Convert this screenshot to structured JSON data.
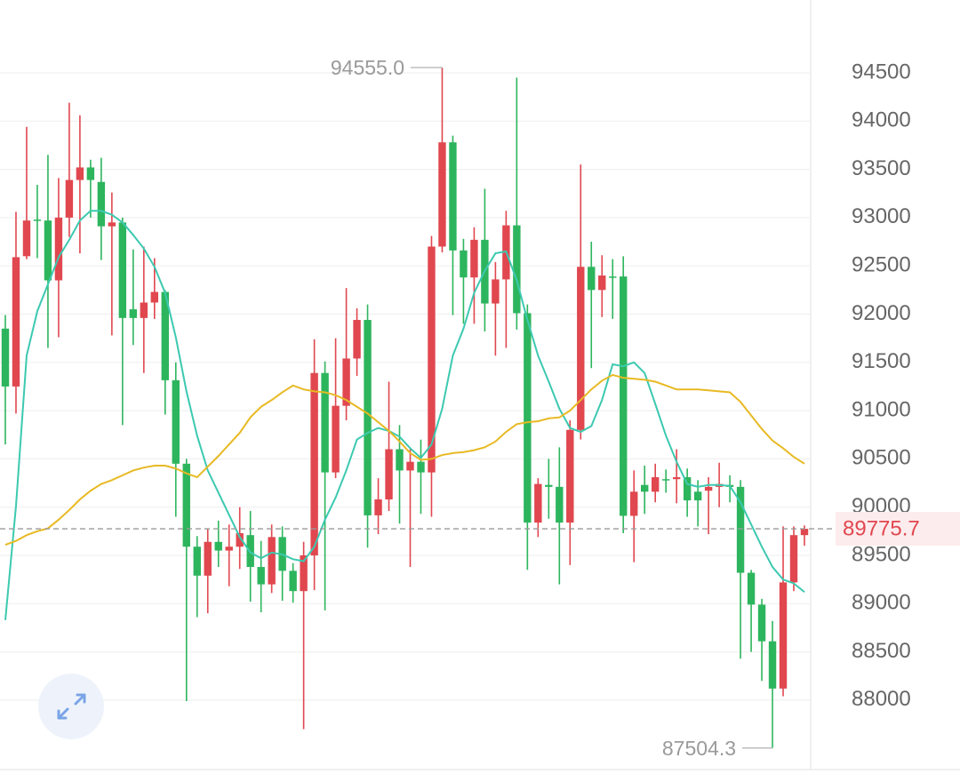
{
  "chart_data": {
    "type": "candlestick",
    "up_color": "#e0474f",
    "down_color": "#2db55d",
    "open": [
      91850,
      91250,
      92600,
      92980,
      92970,
      92350,
      93000,
      93390,
      93520,
      93370,
      92910,
      92950,
      92050,
      91960,
      92120,
      92230,
      91315,
      90450,
      89590,
      89290,
      89640,
      89550,
      89590,
      89710,
      89380,
      89200,
      89690,
      89340,
      89130,
      89500,
      91390,
      90360,
      91050,
      91540,
      91940,
      89915,
      90080,
      90600,
      90380,
      90470,
      90360,
      92700,
      93780,
      92660,
      92380,
      92770,
      92110,
      92360,
      92920,
      92010,
      89840,
      90230,
      90210,
      89840,
      90800,
      92490,
      92250,
      92390,
      92390,
      89910,
      90230,
      90160,
      90290,
      90290,
      90310,
      90160,
      90170,
      90210,
      90230,
      90210,
      89320,
      88990,
      88610,
      88120,
      89220,
      89710
    ],
    "high": [
      91990,
      93060,
      93940,
      93340,
      93650,
      93410,
      94190,
      94060,
      93600,
      93620,
      93260,
      93000,
      92670,
      92700,
      92580,
      92250,
      91500,
      90500,
      89700,
      89780,
      89860,
      89820,
      90000,
      89960,
      89650,
      89820,
      89800,
      89420,
      89640,
      91740,
      91510,
      91750,
      92270,
      92060,
      92100,
      90300,
      91300,
      90850,
      90600,
      90700,
      92810,
      94555,
      93850,
      92780,
      92900,
      93300,
      92540,
      93070,
      94450,
      92100,
      90300,
      90500,
      90620,
      90900,
      93550,
      92750,
      92610,
      92570,
      92600,
      90380,
      90430,
      90450,
      90390,
      90600,
      90400,
      90280,
      90310,
      90460,
      90330,
      90280,
      89350,
      89050,
      88820,
      89800,
      89800,
      89810
    ],
    "low": [
      90650,
      90970,
      92570,
      92580,
      91650,
      91760,
      92800,
      92630,
      93000,
      92560,
      91780,
      90850,
      91680,
      91390,
      91950,
      90960,
      89900,
      87990,
      88860,
      88900,
      89380,
      89180,
      89360,
      89020,
      88910,
      89110,
      89030,
      89010,
      87700,
      89140,
      88930,
      90300,
      90900,
      91360,
      89580,
      89720,
      89960,
      89830,
      89380,
      89930,
      89900,
      92640,
      91990,
      91900,
      91900,
      91820,
      91570,
      91650,
      91840,
      89350,
      89690,
      89880,
      89200,
      89400,
      90700,
      91440,
      91970,
      91950,
      89730,
      89430,
      89930,
      90050,
      90150,
      90040,
      89900,
      89800,
      89720,
      90000,
      90050,
      88430,
      88500,
      88200,
      87504.3,
      88040,
      89130,
      89600
    ],
    "close": [
      91250,
      92590,
      92970,
      92970,
      92350,
      93000,
      93390,
      93520,
      93390,
      92910,
      92950,
      91960,
      91960,
      92120,
      92230,
      91315,
      90450,
      89590,
      89290,
      89640,
      89550,
      89590,
      89730,
      89380,
      89200,
      89690,
      89340,
      89130,
      89500,
      91390,
      90360,
      91050,
      91540,
      91940,
      89915,
      90080,
      90600,
      90380,
      90470,
      90360,
      92700,
      93780,
      92660,
      92380,
      92770,
      92110,
      92360,
      92920,
      92010,
      89840,
      90240,
      90210,
      89840,
      90800,
      92490,
      92250,
      92400,
      92380,
      89910,
      90160,
      90160,
      90310,
      90280,
      90310,
      90070,
      90070,
      90210,
      90240,
      90210,
      89320,
      88990,
      88610,
      88120,
      89220,
      89710,
      89775.7
    ],
    "ma_lines": [
      {
        "color": "#3cc9b0",
        "values": [
          88830,
          90010,
          91570,
          92030,
          92310,
          92590,
          92770,
          92970,
          93070,
          93070,
          93030,
          92950,
          92820,
          92680,
          92490,
          92220,
          91760,
          91200,
          90740,
          90380,
          90150,
          89920,
          89690,
          89530,
          89470,
          89530,
          89510,
          89460,
          89440,
          89590,
          89870,
          90100,
          90380,
          90700,
          90770,
          90820,
          90790,
          90730,
          90610,
          90510,
          90650,
          91020,
          91570,
          91850,
          92220,
          92450,
          92630,
          92650,
          92350,
          91940,
          91570,
          91300,
          91020,
          90820,
          90780,
          90840,
          91110,
          91480,
          91460,
          91500,
          91390,
          91070,
          90740,
          90470,
          90240,
          90210,
          90230,
          90230,
          90220,
          90050,
          89820,
          89590,
          89380,
          89250,
          89210,
          89120
        ]
      },
      {
        "color": "#e8b923",
        "values": [
          89610,
          89650,
          89710,
          89750,
          89780,
          89870,
          89970,
          90080,
          90170,
          90240,
          90280,
          90330,
          90380,
          90410,
          90430,
          90430,
          90400,
          90350,
          90310,
          90420,
          90530,
          90650,
          90770,
          90930,
          91040,
          91110,
          91190,
          91260,
          91220,
          91200,
          91190,
          91160,
          91110,
          91040,
          90970,
          90880,
          90790,
          90680,
          90560,
          90490,
          90500,
          90540,
          90560,
          90570,
          90590,
          90620,
          90680,
          90780,
          90860,
          90880,
          90890,
          90920,
          90930,
          91000,
          91110,
          91220,
          91310,
          91370,
          91340,
          91330,
          91320,
          91300,
          91260,
          91220,
          91220,
          91220,
          91210,
          91200,
          91190,
          91090,
          90950,
          90810,
          90690,
          90610,
          90520,
          90450
        ]
      }
    ],
    "ylim": [
      87290,
      95255
    ],
    "yticks": [
      88000,
      88500,
      89000,
      89500,
      90000,
      90500,
      91000,
      91500,
      92000,
      92500,
      93000,
      93500,
      94000,
      94500
    ],
    "grid": true,
    "max_label": {
      "value": 94555,
      "label": "94555.0"
    },
    "min_label": 87504.3,
    "last_price": 89775.7
  }
}
